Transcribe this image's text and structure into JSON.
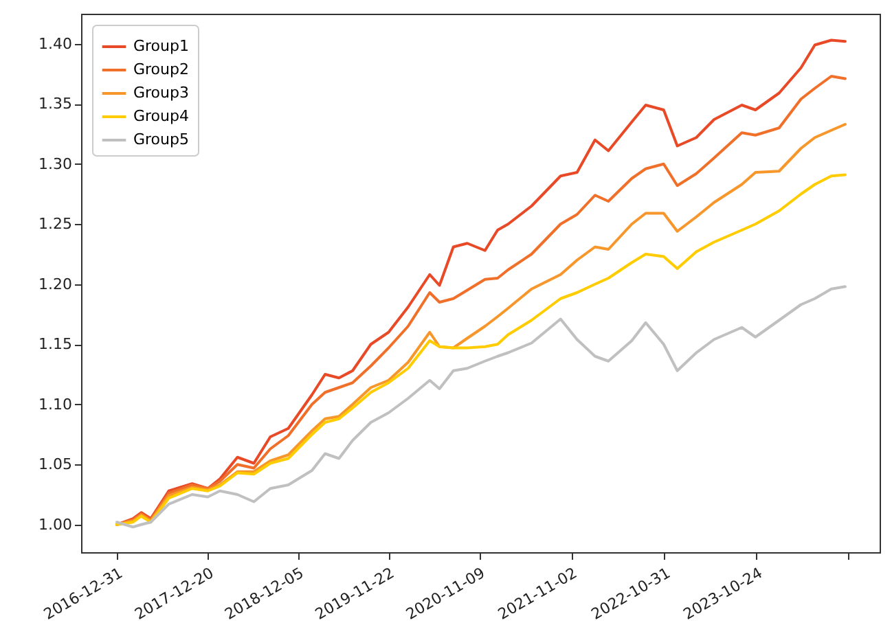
{
  "chart_data": {
    "type": "line",
    "legend": "top left",
    "grid": false,
    "x": [
      "2016-12-31",
      "2017-03-04",
      "2017-04-05",
      "2017-05-12",
      "2017-07-21",
      "2017-10-20",
      "2017-12-20",
      "2018-02-05",
      "2018-04-14",
      "2018-06-17",
      "2018-08-20",
      "2018-10-29",
      "2019-01-29",
      "2019-03-21",
      "2019-05-14",
      "2019-07-06",
      "2019-09-15",
      "2019-11-23",
      "2020-02-07",
      "2020-05-01",
      "2020-06-08",
      "2020-08-01",
      "2020-09-24",
      "2020-12-02",
      "2021-01-20",
      "2021-03-02",
      "2021-06-01",
      "2021-09-22",
      "2021-11-25",
      "2022-02-03",
      "2022-03-27",
      "2022-06-26",
      "2022-08-19",
      "2022-10-28",
      "2022-12-20",
      "2023-03-04",
      "2023-05-12",
      "2023-08-28",
      "2023-10-20",
      "2024-01-20",
      "2024-04-14",
      "2024-06-07",
      "2024-08-10",
      "2024-10-03"
    ],
    "series": [
      {
        "name": "Group1",
        "color": "#e84a27",
        "values": [
          1.0,
          1.005,
          1.01,
          1.005,
          1.028,
          1.034,
          1.03,
          1.038,
          1.056,
          1.051,
          1.073,
          1.08,
          1.108,
          1.125,
          1.122,
          1.128,
          1.15,
          1.16,
          1.181,
          1.208,
          1.199,
          1.231,
          1.234,
          1.228,
          1.245,
          1.25,
          1.265,
          1.29,
          1.293,
          1.32,
          1.311,
          1.335,
          1.349,
          1.345,
          1.315,
          1.322,
          1.337,
          1.349,
          1.345,
          1.359,
          1.38,
          1.399,
          1.403,
          1.402
        ]
      },
      {
        "name": "Group2",
        "color": "#f0702a",
        "values": [
          1.0,
          1.004,
          1.009,
          1.004,
          1.026,
          1.033,
          1.03,
          1.036,
          1.05,
          1.047,
          1.063,
          1.074,
          1.1,
          1.11,
          1.114,
          1.118,
          1.132,
          1.147,
          1.165,
          1.193,
          1.185,
          1.188,
          1.195,
          1.204,
          1.205,
          1.212,
          1.225,
          1.25,
          1.258,
          1.274,
          1.269,
          1.288,
          1.296,
          1.3,
          1.282,
          1.292,
          1.305,
          1.326,
          1.324,
          1.33,
          1.354,
          1.363,
          1.373,
          1.371
        ]
      },
      {
        "name": "Group3",
        "color": "#f7962a",
        "values": [
          1.0,
          1.003,
          1.008,
          1.003,
          1.024,
          1.031,
          1.029,
          1.033,
          1.044,
          1.044,
          1.053,
          1.058,
          1.078,
          1.088,
          1.09,
          1.1,
          1.114,
          1.12,
          1.135,
          1.16,
          1.148,
          1.147,
          1.155,
          1.165,
          1.173,
          1.18,
          1.196,
          1.208,
          1.22,
          1.231,
          1.229,
          1.25,
          1.259,
          1.259,
          1.244,
          1.256,
          1.268,
          1.283,
          1.293,
          1.294,
          1.313,
          1.322,
          1.328,
          1.333
        ]
      },
      {
        "name": "Group4",
        "color": "#ffcc00",
        "values": [
          1.0,
          1.002,
          1.007,
          1.002,
          1.022,
          1.03,
          1.028,
          1.032,
          1.043,
          1.042,
          1.051,
          1.055,
          1.075,
          1.085,
          1.088,
          1.097,
          1.11,
          1.118,
          1.13,
          1.153,
          1.148,
          1.147,
          1.147,
          1.148,
          1.15,
          1.158,
          1.17,
          1.188,
          1.193,
          1.2,
          1.205,
          1.218,
          1.225,
          1.223,
          1.213,
          1.227,
          1.235,
          1.245,
          1.25,
          1.261,
          1.275,
          1.283,
          1.29,
          1.291
        ]
      },
      {
        "name": "Group5",
        "color": "#c0c0c0",
        "values": [
          1.002,
          0.998,
          1.0,
          1.002,
          1.017,
          1.025,
          1.023,
          1.028,
          1.025,
          1.019,
          1.03,
          1.033,
          1.045,
          1.059,
          1.055,
          1.07,
          1.085,
          1.093,
          1.105,
          1.12,
          1.113,
          1.128,
          1.13,
          1.136,
          1.14,
          1.143,
          1.151,
          1.171,
          1.154,
          1.14,
          1.136,
          1.153,
          1.168,
          1.15,
          1.128,
          1.143,
          1.154,
          1.164,
          1.156,
          1.17,
          1.183,
          1.188,
          1.196,
          1.198
        ]
      }
    ],
    "xlim": [
      "2016-08-14",
      "2025-02-14"
    ],
    "xticks": [
      "2016-12-31",
      "2017-12-20",
      "2018-12-05",
      "2019-11-22",
      "2020-11-09",
      "2021-11-02",
      "2022-10-31",
      "2023-10-24",
      {
        "value": "2024-10-14",
        "label": null
      }
    ],
    "ylim": [
      0.977,
      1.425
    ],
    "yticks": [
      {
        "value": 1.0,
        "label": "1.00"
      },
      {
        "value": 1.05,
        "label": "1.05"
      },
      {
        "value": 1.1,
        "label": "1.10"
      },
      {
        "value": 1.15,
        "label": "1.15"
      },
      {
        "value": 1.2,
        "label": "1.20"
      },
      {
        "value": 1.25,
        "label": "1.25"
      },
      {
        "value": 1.3,
        "label": "1.30"
      },
      {
        "value": 1.35,
        "label": "1.35"
      },
      {
        "value": 1.4,
        "label": "1.40"
      }
    ]
  }
}
